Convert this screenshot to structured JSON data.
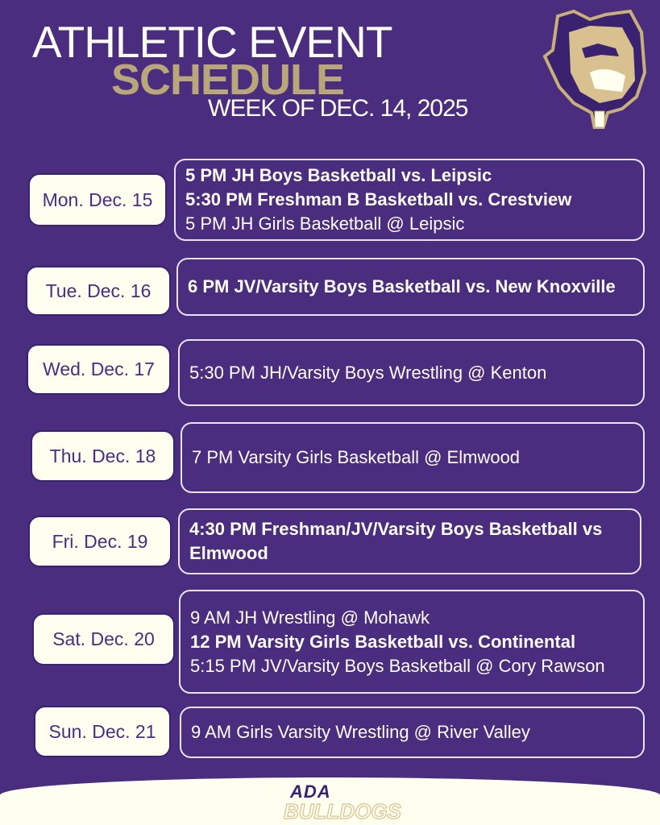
{
  "header": {
    "title_line1": "ATHLETIC EVENT",
    "title_line2": "SCHEDULE",
    "subtitle": "WEEK OF DEC. 14, 2025"
  },
  "colors": {
    "background": "#4b2d80",
    "gold": "#b9a77a",
    "cream": "#fffff0"
  },
  "days": [
    {
      "date": "Mon. Dec. 15",
      "events": [
        {
          "text": "5 PM JH Boys Basketball vs. Leipsic",
          "bold": true
        },
        {
          "text": "5:30 PM Freshman B Basketball vs. Crestview",
          "bold": true
        },
        {
          "text": "5 PM JH Girls Basketball @ Leipsic",
          "bold": false
        }
      ]
    },
    {
      "date": "Tue. Dec. 16",
      "events": [
        {
          "text": "6 PM JV/Varsity Boys Basketball vs. New Knoxville",
          "bold": true
        }
      ]
    },
    {
      "date": "Wed. Dec. 17",
      "events": [
        {
          "text": "5:30 PM JH/Varsity Boys Wrestling @ Kenton",
          "bold": false
        }
      ]
    },
    {
      "date": "Thu. Dec. 18",
      "events": [
        {
          "text": "7 PM Varsity Girls Basketball @ Elmwood",
          "bold": false
        }
      ]
    },
    {
      "date": "Fri. Dec. 19",
      "events": [
        {
          "text": "4:30 PM Freshman/JV/Varsity Boys Basketball vs Elmwood",
          "bold": true
        }
      ]
    },
    {
      "date": "Sat. Dec. 20",
      "events": [
        {
          "text": "9 AM JH Wrestling @ Mohawk",
          "bold": false
        },
        {
          "text": "12 PM Varsity Girls Basketball vs. Continental",
          "bold": true
        },
        {
          "text": "5:15 PM JV/Varsity Boys Basketball @ Cory Rawson",
          "bold": false
        }
      ]
    },
    {
      "date": "Sun. Dec. 21",
      "events": [
        {
          "text": "9 AM Girls Varsity Wrestling @ River Valley",
          "bold": false
        }
      ]
    }
  ],
  "footer": {
    "logo_line1": "ADA",
    "logo_line2": "BULLDOGS"
  }
}
